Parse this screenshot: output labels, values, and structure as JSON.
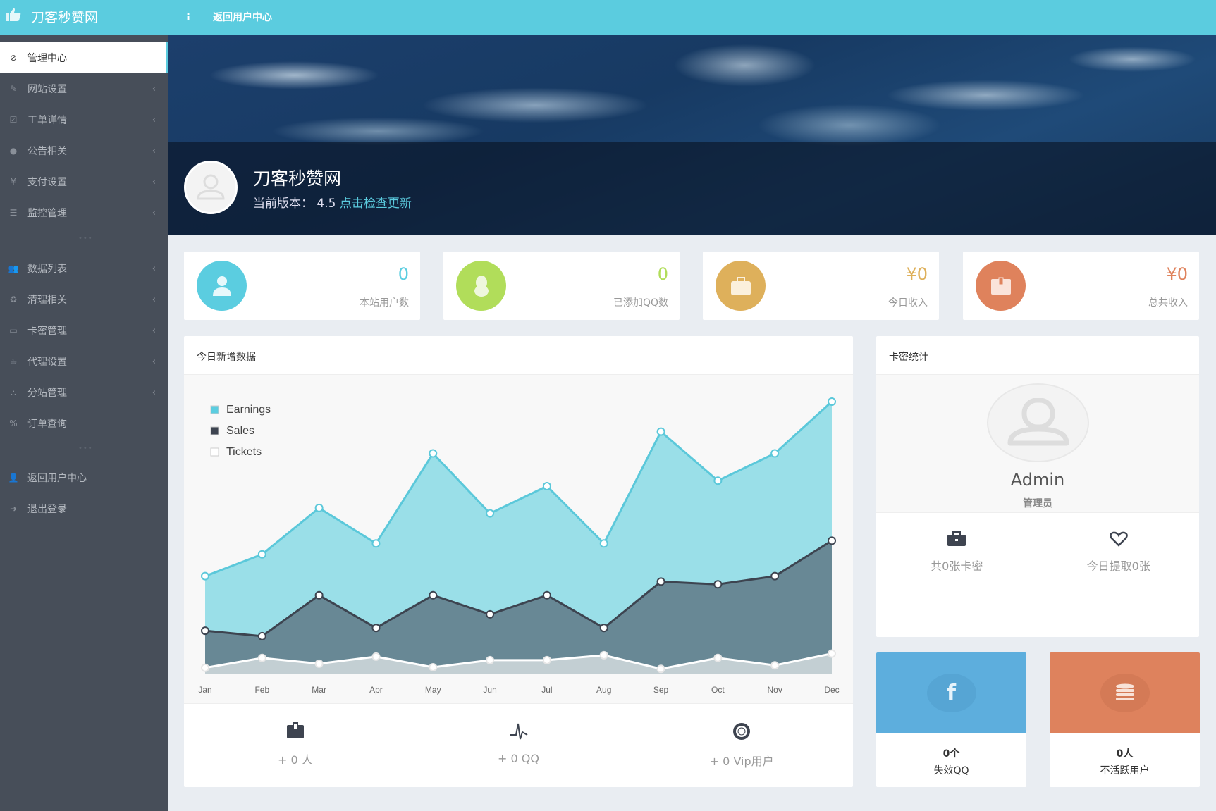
{
  "header": {
    "site_name": "刀客秒赞网",
    "menu_icon": "⁝",
    "back_link": "返回用户中心"
  },
  "sidebar": {
    "items": [
      {
        "label": "管理中心",
        "icon": "compass-icon",
        "active": true
      },
      {
        "label": "网站设置",
        "icon": "pencil-icon"
      },
      {
        "label": "工单详情",
        "icon": "checkbox-icon"
      },
      {
        "label": "公告相关",
        "icon": "exclamation-icon"
      },
      {
        "label": "支付设置",
        "icon": "yen-icon"
      },
      {
        "label": "监控管理",
        "icon": "server-icon"
      },
      {
        "label": "数据列表",
        "icon": "users-icon"
      },
      {
        "label": "清理相关",
        "icon": "recycle-icon"
      },
      {
        "label": "卡密管理",
        "icon": "credit-card-icon"
      },
      {
        "label": "代理设置",
        "icon": "coffee-icon"
      },
      {
        "label": "分站管理",
        "icon": "sitemap-icon"
      },
      {
        "label": "订单查询",
        "icon": "percent-icon"
      },
      {
        "label": "返回用户中心",
        "icon": "user-icon"
      },
      {
        "label": "退出登录",
        "icon": "sign-out-icon"
      }
    ]
  },
  "banner": {
    "title": "刀客秒赞网",
    "version_label": "当前版本：",
    "version": "4.5",
    "update_link": "点击检查更新"
  },
  "stats": [
    {
      "value": "0",
      "label": "本站用户数",
      "color": "#5bcde0",
      "icon": "user-icon"
    },
    {
      "value": "0",
      "label": "已添加QQ数",
      "color": "#b1dd5a",
      "icon": "qq-penguin-icon"
    },
    {
      "value": "¥0",
      "label": "今日收入",
      "color": "#deb05b",
      "icon": "briefcase-icon"
    },
    {
      "value": "¥0",
      "label": "总共收入",
      "color": "#df825c",
      "icon": "wallet-icon"
    }
  ],
  "chart_panel": {
    "title": "今日新增数据",
    "footer": [
      {
        "label": "+ 0 人",
        "icon": "wallet-icon"
      },
      {
        "label": "+ 0 QQ",
        "icon": "pulse-icon"
      },
      {
        "label": "+ 0 Vip用户",
        "icon": "life-ring-icon"
      }
    ]
  },
  "chart_data": {
    "type": "area",
    "categories": [
      "Jan",
      "Feb",
      "Mar",
      "Apr",
      "May",
      "Jun",
      "Jul",
      "Aug",
      "Sep",
      "Oct",
      "Nov",
      "Dec"
    ],
    "series": [
      {
        "name": "Earnings",
        "color": "#5bc8da",
        "fill": "#9adfe8",
        "values": [
          36,
          44,
          61,
          48,
          81,
          59,
          69,
          48,
          89,
          71,
          81,
          100
        ]
      },
      {
        "name": "Sales",
        "color": "#3d4450",
        "fill": "#688895",
        "values": [
          16,
          14,
          29,
          17,
          29,
          22,
          29,
          17,
          34,
          33,
          36,
          49
        ]
      },
      {
        "name": "Tickets",
        "color": "#ffffff",
        "fill": "#c3cfd3",
        "values": [
          2.4,
          6,
          3.9,
          6.5,
          2.6,
          5.2,
          5.2,
          7,
          2,
          6,
          3.3,
          7.6
        ]
      }
    ],
    "legend": "top-left",
    "grid": false,
    "ylim": [
      0,
      100
    ]
  },
  "card_panel": {
    "title": "卡密统计",
    "name": "Admin",
    "role": "管理员",
    "stats": [
      {
        "label": "共0张卡密",
        "icon": "briefcase-icon"
      },
      {
        "label": "今日提取0张",
        "icon": "heart-icon"
      }
    ]
  },
  "tiles": [
    {
      "count": "0个",
      "label": "失效QQ",
      "color": "#5daedd",
      "icon": "facebook-icon"
    },
    {
      "count": "0人",
      "label": "不活跃用户",
      "color": "#de825d",
      "icon": "database-icon"
    }
  ]
}
